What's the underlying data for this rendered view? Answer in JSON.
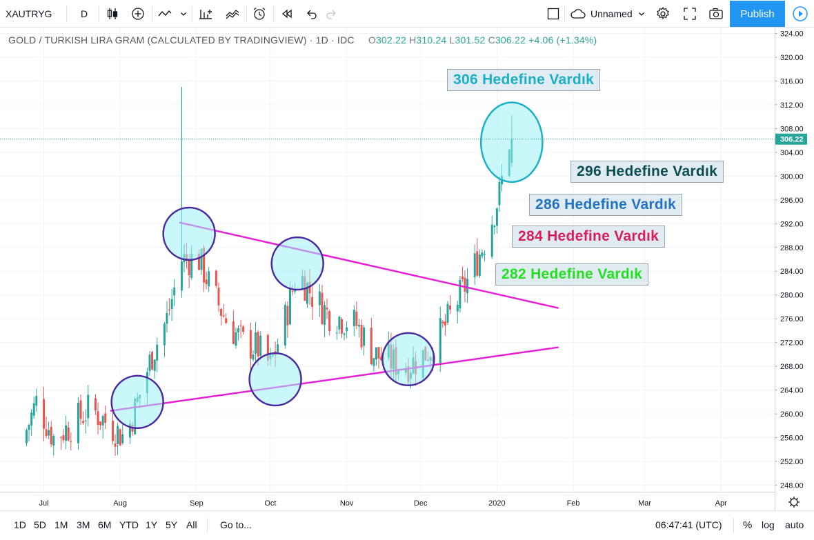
{
  "toolbar": {
    "symbol": "XAUTRYG",
    "interval": "D",
    "layout_name": "Unnamed",
    "publish_label": "Publish"
  },
  "legend": {
    "title": "GOLD / TURKISH LIRA GRAM (CALCULATED BY TRADINGVIEW) · 1D · IDC",
    "o_key": "O",
    "o_val": "302.22",
    "h_key": "H",
    "h_val": "310.24",
    "l_key": "L",
    "l_val": "301.52",
    "c_key": "C",
    "c_val": "306.22",
    "change": "+4.06 (+1.34%)"
  },
  "annotations": {
    "a306": "306 Hedefine Vardık",
    "a296": "296 Hedefine Vardık",
    "a286": "286 Hedefine Vardık",
    "a284": "284 Hedefine Vardık",
    "a282": "282 Hedefine Vardık"
  },
  "colors": {
    "up": "#26a69a",
    "down": "#ef5350",
    "trendline": "#e61fd5",
    "circle_fill": "#9ff3f6",
    "circle_edge": "#4b2aa0",
    "a306": "#1ab0c8",
    "a296": "#0b4e52",
    "a286": "#2273c3",
    "a284": "#d81e5b",
    "a282": "#22e11f"
  },
  "chart_data": {
    "type": "candlestick",
    "y_axis_ticks": [
      "324.00",
      "320.00",
      "316.00",
      "312.00",
      "308.00",
      "304.00",
      "300.00",
      "296.00",
      "292.00",
      "288.00",
      "284.00",
      "280.00",
      "276.00",
      "272.00",
      "268.00",
      "264.00",
      "260.00",
      "256.00",
      "252.00",
      "248.00"
    ],
    "x_axis_ticks": [
      "Jul",
      "Aug",
      "Sep",
      "Oct",
      "Nov",
      "Dec",
      "2020",
      "Feb",
      "Mar",
      "Apr"
    ],
    "last_price_label": "306.22",
    "last_price": 306.22,
    "ylim": [
      246.5,
      325
    ],
    "anchors": [
      [
        "Jun 22",
        255
      ],
      [
        "Jun 28",
        262
      ],
      [
        "Jul 5",
        256
      ],
      [
        "Jul 12",
        258
      ],
      [
        "Jul 20",
        261
      ],
      [
        "Jul 28",
        258
      ],
      [
        "Aug 3",
        256
      ],
      [
        "Aug 8",
        262
      ],
      [
        "Aug 14",
        270
      ],
      [
        "Aug 20",
        276
      ],
      [
        "Aug 26",
        286
      ],
      [
        "Sep 2",
        286
      ],
      [
        "Sep 8",
        280
      ],
      [
        "Sep 14",
        275
      ],
      [
        "Sep 20",
        272
      ],
      [
        "Sep 26",
        271
      ],
      [
        "Oct 1",
        268
      ],
      [
        "Oct 7",
        276
      ],
      [
        "Oct 12",
        284
      ],
      [
        "Oct 18",
        280
      ],
      [
        "Oct 24",
        277
      ],
      [
        "Oct 30",
        276
      ],
      [
        "Nov 5",
        275
      ],
      [
        "Nov 12",
        270
      ],
      [
        "Nov 18",
        269
      ],
      [
        "Nov 24",
        268
      ],
      [
        "Nov 30",
        269
      ],
      [
        "Dec 5",
        271
      ],
      [
        "Dec 10",
        274
      ],
      [
        "Dec 16",
        279
      ],
      [
        "Dec 22",
        284
      ],
      [
        "Dec 28",
        290
      ],
      [
        "Jan 2",
        297
      ],
      [
        "Jan 6",
        306
      ]
    ],
    "spikes": [
      {
        "date": "Aug 26",
        "high": 315,
        "low": 283
      }
    ],
    "trendlines": [
      {
        "from": [
          "Aug 25",
          292.2
        ],
        "to": [
          "Jan 26",
          277.8
        ]
      },
      {
        "from": [
          "Jul 28",
          260.5
        ],
        "to": [
          "Jan 26",
          271.2
        ]
      }
    ],
    "circles": [
      {
        "date": "Aug 8",
        "price": 262,
        "rx_days": 10.5,
        "ry_price": 4.4
      },
      {
        "date": "Aug 29",
        "price": 290.3,
        "rx_days": 10.5,
        "ry_price": 4.4
      },
      {
        "date": "Oct 12",
        "price": 285.3,
        "rx_days": 10.5,
        "ry_price": 4.4
      },
      {
        "date": "Oct 3",
        "price": 265.8,
        "rx_days": 10.5,
        "ry_price": 4.4
      },
      {
        "date": "Nov 26",
        "price": 269.2,
        "rx_days": 10.5,
        "ry_price": 4.4
      },
      {
        "date": "Jan 7",
        "price": 305.7,
        "rx_days": 12.5,
        "ry_price": 6.7,
        "fill": "a306",
        "edge": "a306"
      }
    ]
  },
  "bottombar": {
    "ranges": [
      "1D",
      "5D",
      "1M",
      "3M",
      "6M",
      "YTD",
      "1Y",
      "5Y",
      "All"
    ],
    "goto": "Go to...",
    "clock": "06:47:41 (UTC)",
    "percent": "%",
    "log": "log",
    "auto": "auto"
  }
}
